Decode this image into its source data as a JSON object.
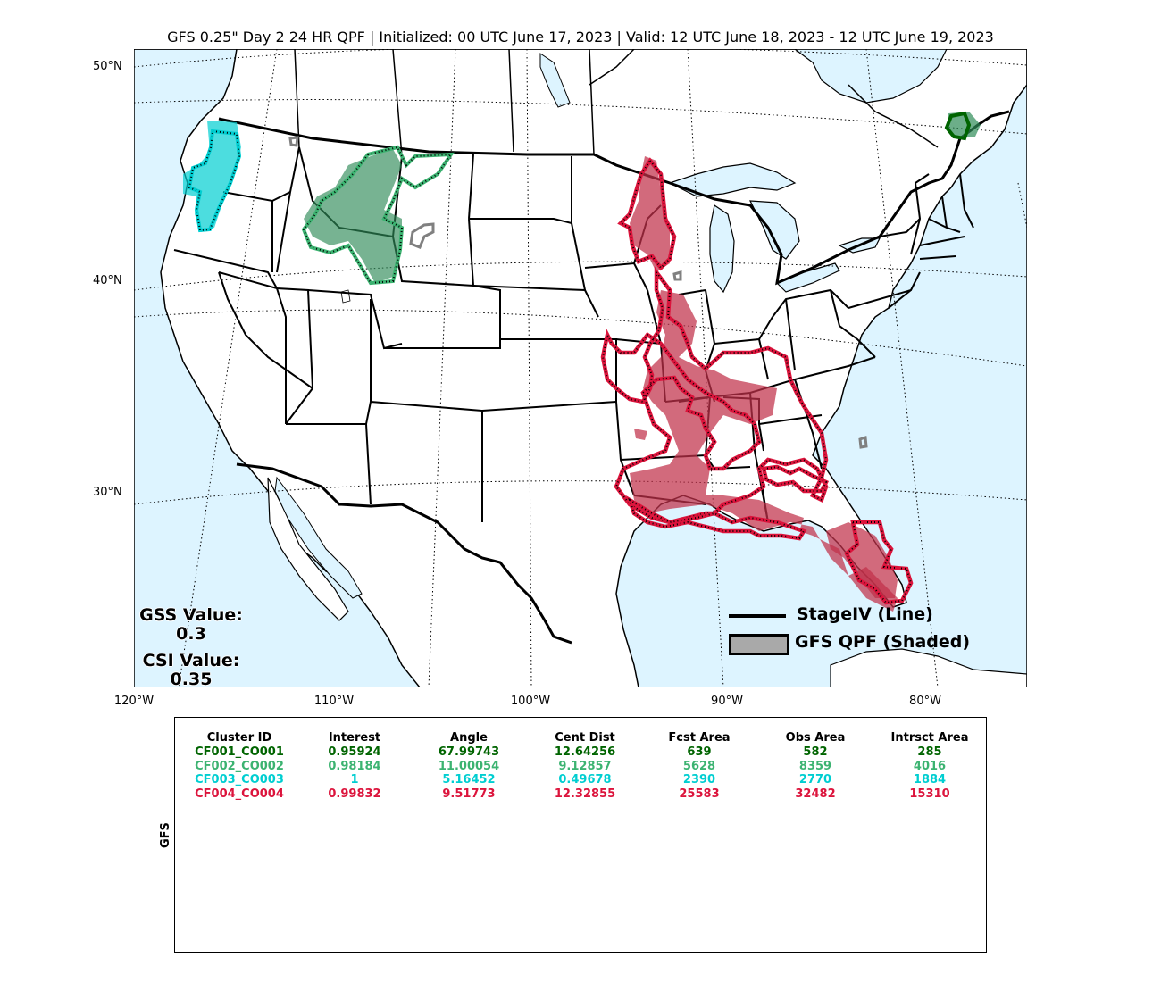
{
  "title": "GFS 0.25\" Day 2 24 HR QPF | Initialized: 00 UTC June 17, 2023 | Valid: 12 UTC June 18, 2023 - 12 UTC June 19, 2023",
  "lat_labels": [
    "50°N",
    "40°N",
    "30°N"
  ],
  "lon_labels": [
    "120°W",
    "110°W",
    "100°W",
    "90°W",
    "80°W"
  ],
  "stats": {
    "gss_label": "GSS Value:",
    "gss_value": "0.3",
    "csi_label": "CSI Value:",
    "csi_value": "0.35"
  },
  "legend": {
    "line_label": "StageIV (Line)",
    "shaded_label": "GFS QPF (Shaded)"
  },
  "colors": {
    "water": "#ddf4ff",
    "cluster1": "#006400",
    "cluster2": "#3cb371",
    "cluster3": "#00ced1",
    "cluster4": "#dc143c",
    "unmatched": "#808080"
  },
  "table": {
    "model_label": "GFS",
    "headers": [
      "Cluster ID",
      "Interest",
      "Angle",
      "Cent Dist",
      "Fcst Area",
      "Obs Area",
      "Intrsct Area"
    ],
    "rows": [
      [
        "CF001_CO001",
        "0.95924",
        "67.99743",
        "12.64256",
        "639",
        "582",
        "285"
      ],
      [
        "CF002_CO002",
        "0.98184",
        "11.00054",
        "9.12857",
        "5628",
        "8359",
        "4016"
      ],
      [
        "CF003_CO003",
        "1",
        "5.16452",
        "0.49678",
        "2390",
        "2770",
        "1884"
      ],
      [
        "CF004_CO004",
        "0.99832",
        "9.51773",
        "12.32855",
        "25583",
        "32482",
        "15310"
      ]
    ]
  }
}
